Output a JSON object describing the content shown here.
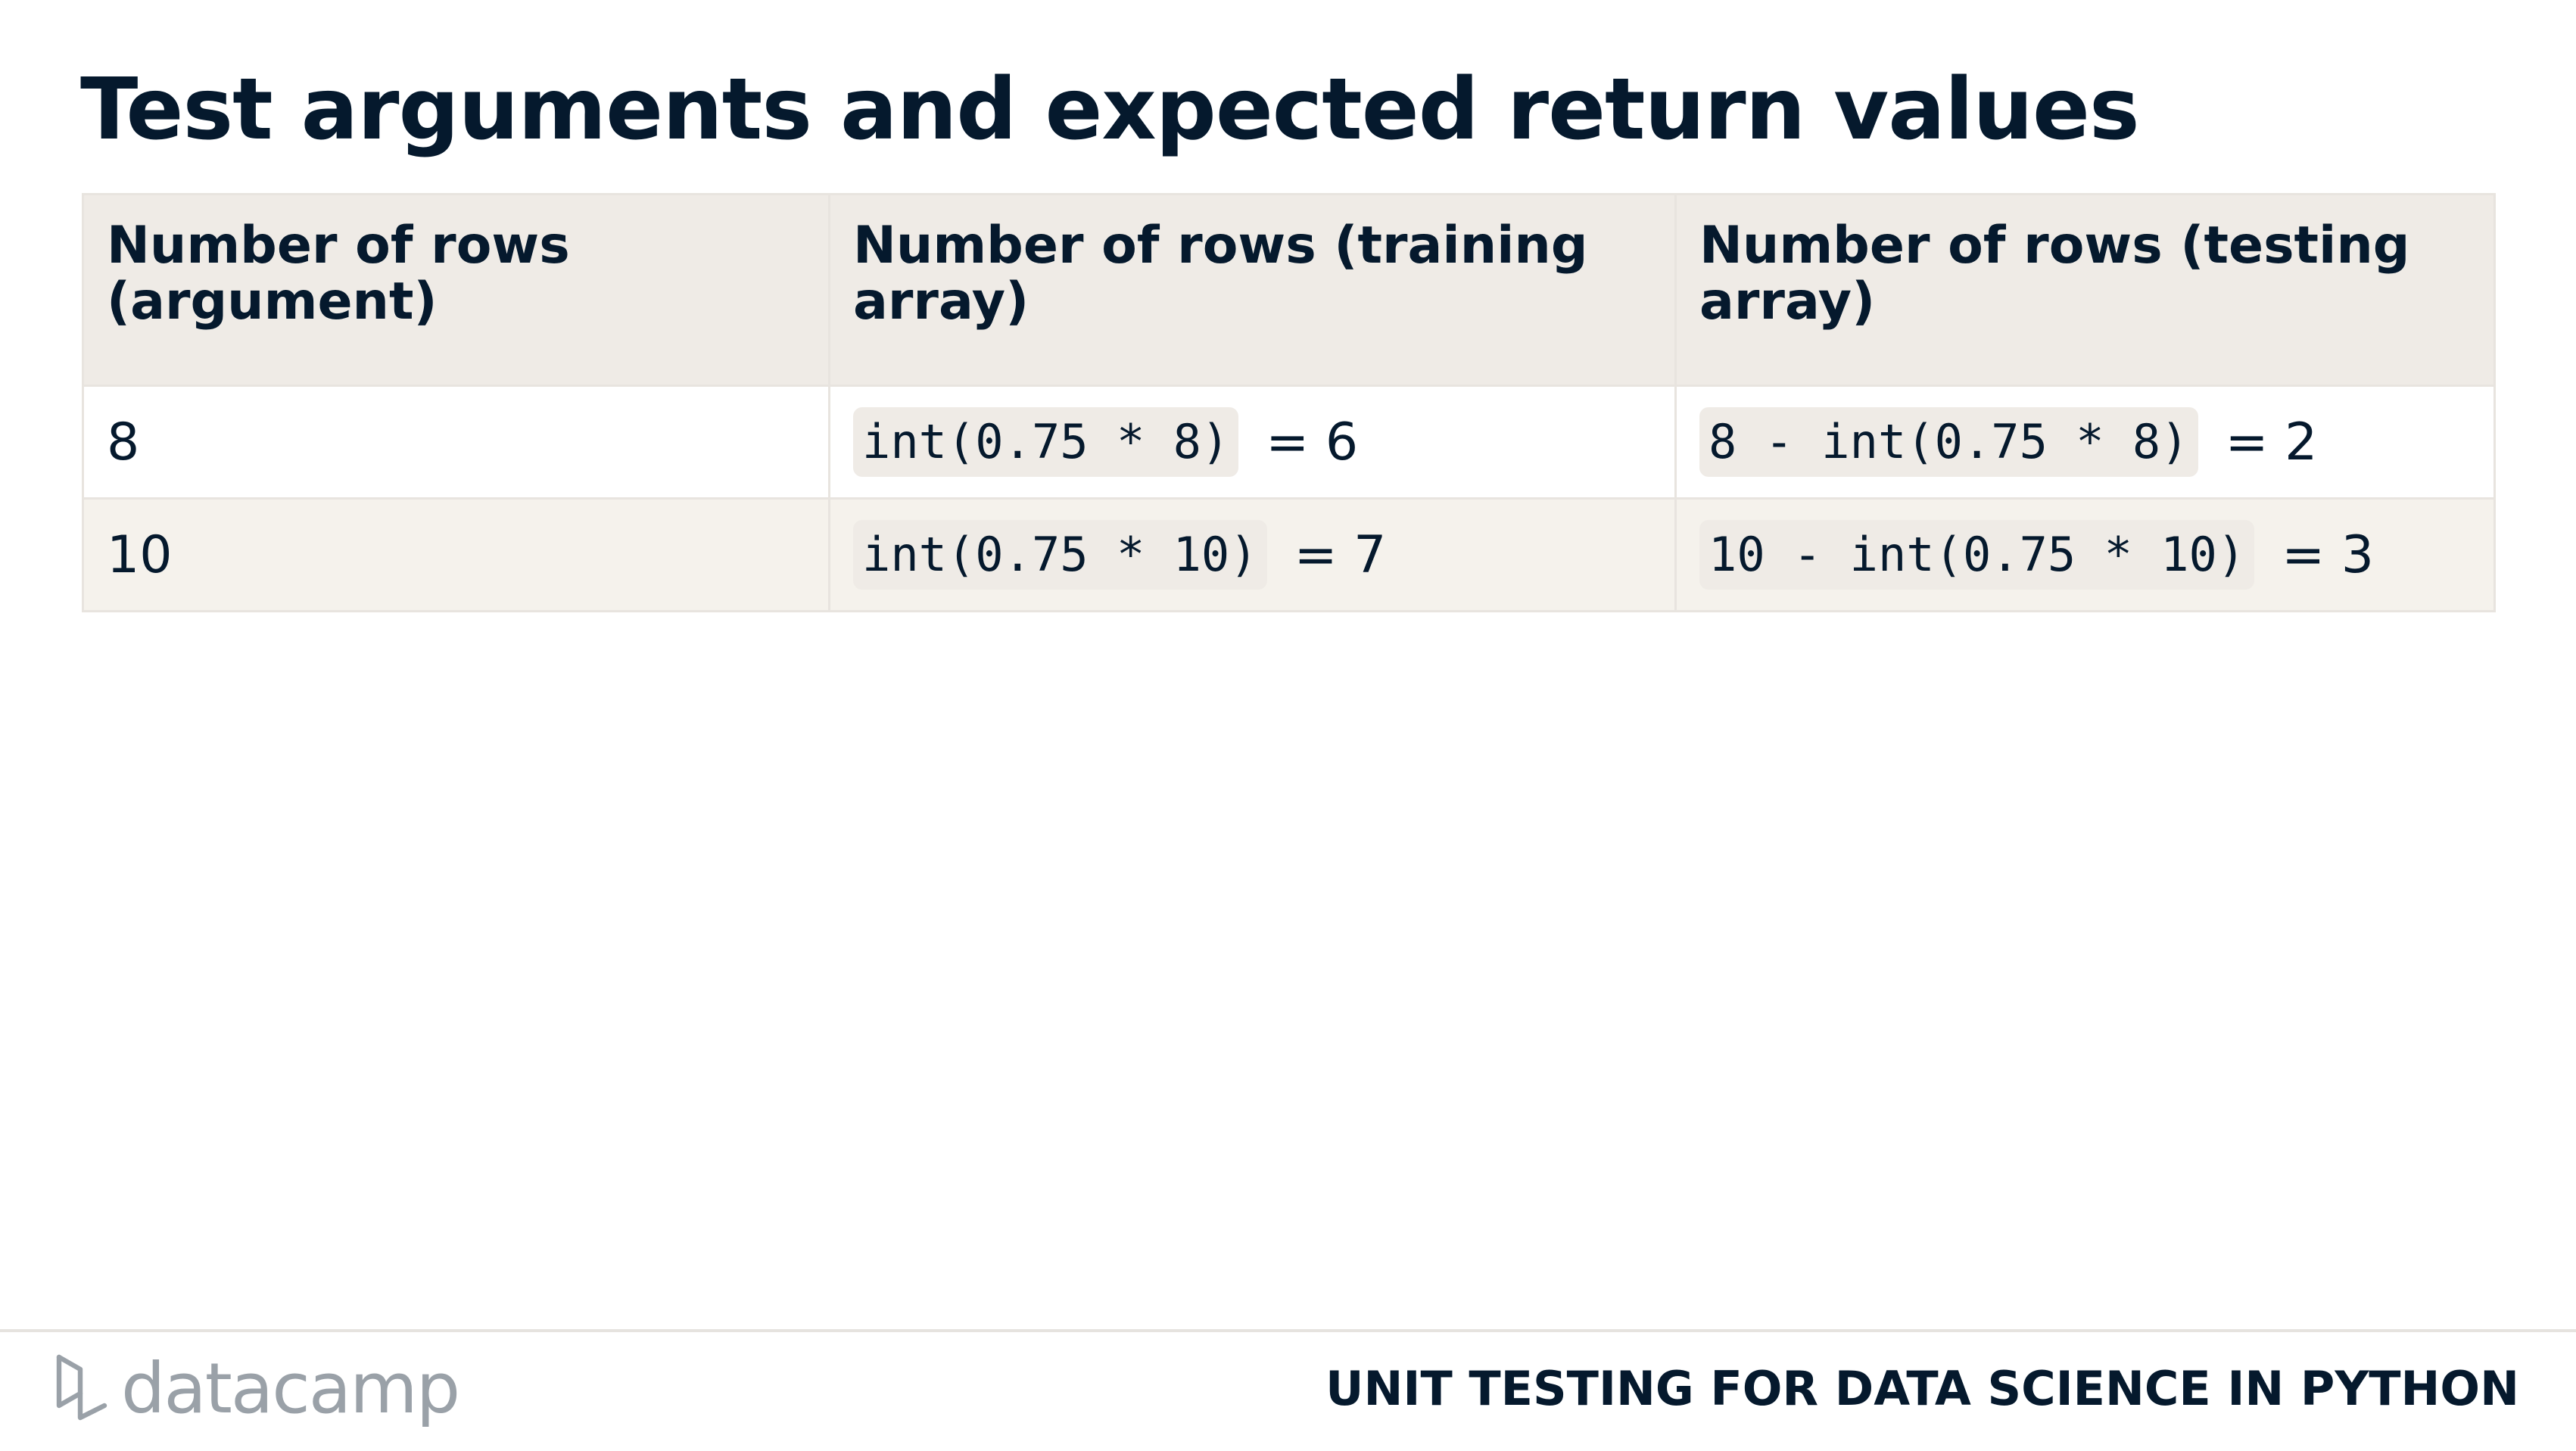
{
  "slide": {
    "title": "Test arguments and expected return values"
  },
  "table": {
    "headers": [
      "Number of rows (argument)",
      "Number of rows (training array)",
      "Number of rows (testing array)"
    ],
    "rows": [
      {
        "argument": "8",
        "training_code": "int(0.75 * 8)",
        "training_result": "= 6",
        "testing_code": "8 - int(0.75 * 8)",
        "testing_result": "= 2"
      },
      {
        "argument": "10",
        "training_code": "int(0.75 * 10)",
        "training_result": "= 7",
        "testing_code": "10 - int(0.75 * 10)",
        "testing_result": "= 3"
      }
    ]
  },
  "footer": {
    "logo_icon": "datacamp-logo-icon",
    "logo_text": "datacamp",
    "course_title": "UNIT TESTING FOR DATA SCIENCE IN PYTHON"
  },
  "colors": {
    "text": "#05192d",
    "header_bg": "#efebe6",
    "alt_row_bg": "#f5f2ec",
    "code_bg": "#efebe6",
    "logo": "#9aa1a8"
  }
}
